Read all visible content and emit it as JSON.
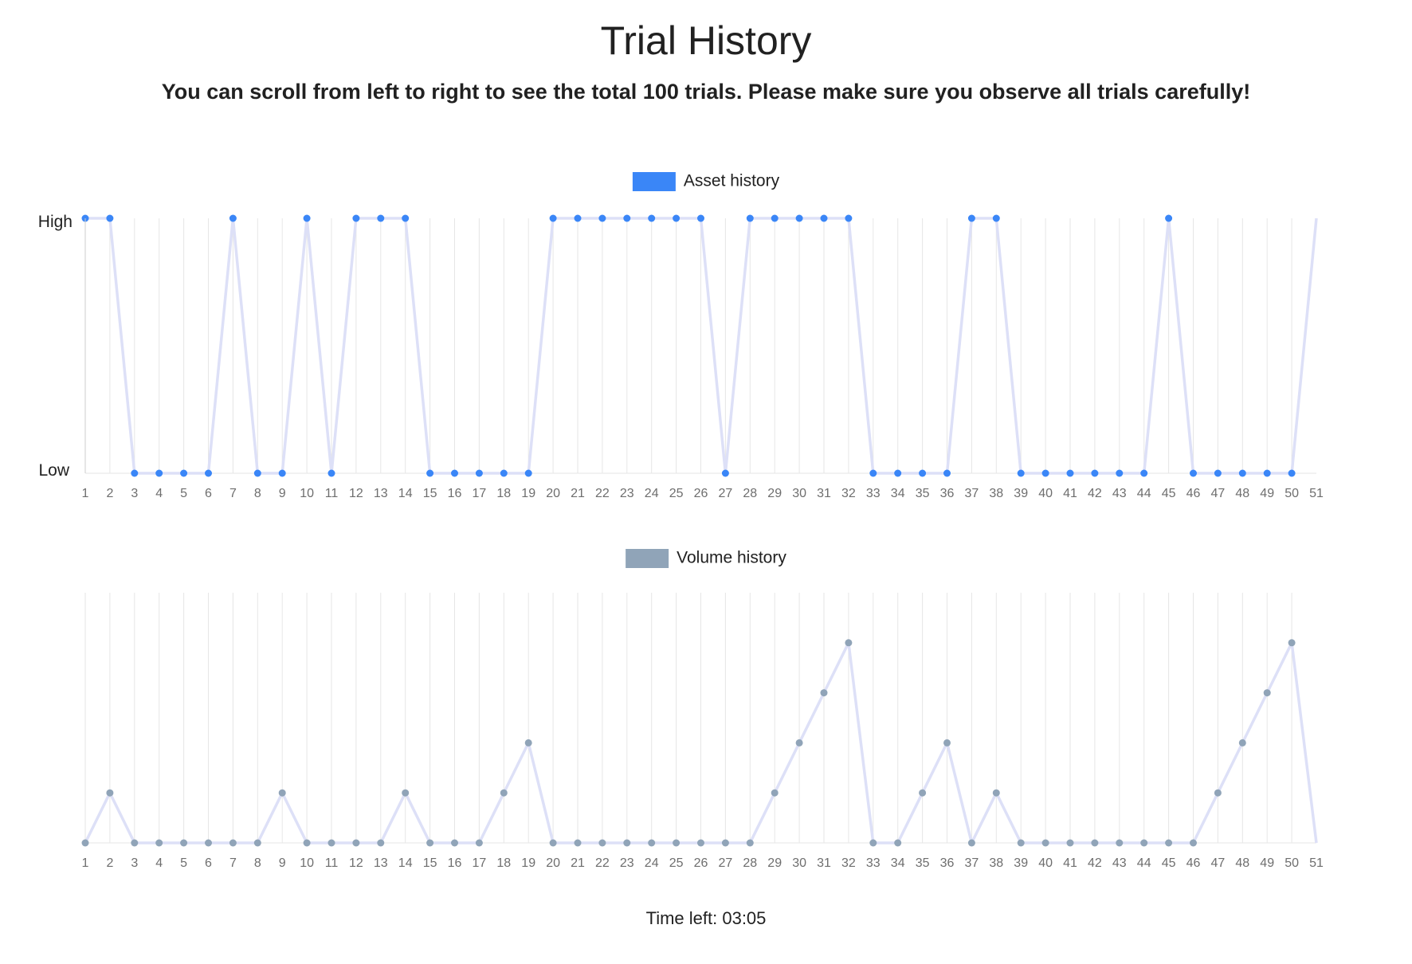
{
  "page": {
    "title": "Trial History",
    "instructions": "You can scroll from left to right to see the total 100 trials. Please make sure you observe all trials carefully!",
    "timer_label": "Time left: 03:05"
  },
  "colors": {
    "asset_point": "#3a86f7",
    "volume_point": "#90a4b8",
    "line": "#dde0f7",
    "grid": "#e6e6e6",
    "tick_text": "#6e6e6e"
  },
  "chart_data": [
    {
      "type": "line",
      "title": "",
      "legend": "Asset history",
      "legend_placement": "top-center",
      "grid": true,
      "xlabel": "",
      "ylabel": "",
      "y_tick_labels": [
        "High",
        "Low"
      ],
      "ylim": [
        0,
        1
      ],
      "visible_x_range": [
        1,
        50
      ],
      "x": [
        1,
        2,
        3,
        4,
        5,
        6,
        7,
        8,
        9,
        10,
        11,
        12,
        13,
        14,
        15,
        16,
        17,
        18,
        19,
        20,
        21,
        22,
        23,
        24,
        25,
        26,
        27,
        28,
        29,
        30,
        31,
        32,
        33,
        34,
        35,
        36,
        37,
        38,
        39,
        40,
        41,
        42,
        43,
        44,
        45,
        46,
        47,
        48,
        49,
        50
      ],
      "series": [
        {
          "name": "Asset history",
          "values": [
            1,
            1,
            0,
            0,
            0,
            0,
            1,
            0,
            0,
            1,
            0,
            1,
            1,
            1,
            0,
            0,
            0,
            0,
            0,
            1,
            1,
            1,
            1,
            1,
            1,
            1,
            0,
            1,
            1,
            1,
            1,
            1,
            0,
            0,
            0,
            0,
            1,
            1,
            0,
            0,
            0,
            0,
            0,
            0,
            1,
            0,
            0,
            0,
            0,
            0
          ]
        }
      ],
      "next_value_partial": 1
    },
    {
      "type": "line",
      "title": "",
      "legend": "Volume history",
      "legend_placement": "top-center",
      "grid": true,
      "xlabel": "",
      "ylabel": "",
      "ylim": [
        0,
        5
      ],
      "visible_x_range": [
        1,
        50
      ],
      "x": [
        1,
        2,
        3,
        4,
        5,
        6,
        7,
        8,
        9,
        10,
        11,
        12,
        13,
        14,
        15,
        16,
        17,
        18,
        19,
        20,
        21,
        22,
        23,
        24,
        25,
        26,
        27,
        28,
        29,
        30,
        31,
        32,
        33,
        34,
        35,
        36,
        37,
        38,
        39,
        40,
        41,
        42,
        43,
        44,
        45,
        46,
        47,
        48,
        49,
        50
      ],
      "series": [
        {
          "name": "Volume history",
          "values": [
            0,
            1,
            0,
            0,
            0,
            0,
            0,
            0,
            1,
            0,
            0,
            0,
            0,
            1,
            0,
            0,
            0,
            1,
            2,
            0,
            0,
            0,
            0,
            0,
            0,
            0,
            0,
            0,
            1,
            2,
            3,
            4,
            0,
            0,
            1,
            2,
            0,
            1,
            0,
            0,
            0,
            0,
            0,
            0,
            0,
            0,
            1,
            2,
            3,
            4
          ]
        }
      ],
      "next_value_partial": 0
    }
  ]
}
